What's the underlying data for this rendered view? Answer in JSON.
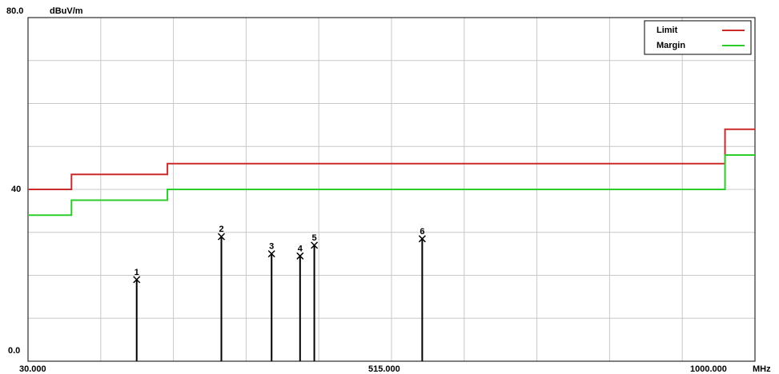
{
  "chart_data": {
    "type": "line",
    "y_unit": "dBuV/m",
    "x_unit": "MHz",
    "y_tick_labels": [
      "80.0",
      "40",
      "0.0"
    ],
    "x_tick_labels": [
      "30.000",
      "515.000",
      "1000.000"
    ],
    "ylim": [
      0,
      80
    ],
    "xlim": [
      30,
      1000
    ],
    "grid": true,
    "legend_position": "top-right",
    "series": [
      {
        "name": "Limit",
        "color": "#cc2a2a",
        "points": [
          [
            30,
            40
          ],
          [
            88,
            40
          ],
          [
            88,
            43.5
          ],
          [
            216,
            43.5
          ],
          [
            216,
            46
          ],
          [
            960,
            46
          ],
          [
            960,
            54
          ],
          [
            1000,
            54
          ]
        ]
      },
      {
        "name": "Margin",
        "color": "#2ccc2a",
        "points": [
          [
            30,
            34
          ],
          [
            88,
            34
          ],
          [
            88,
            37.5
          ],
          [
            216,
            37.5
          ],
          [
            216,
            40
          ],
          [
            960,
            40
          ],
          [
            960,
            48
          ],
          [
            1000,
            48
          ]
        ]
      }
    ],
    "markers": [
      {
        "label": "1",
        "x": 175,
        "y": 19
      },
      {
        "label": "2",
        "x": 288,
        "y": 29
      },
      {
        "label": "3",
        "x": 355,
        "y": 25
      },
      {
        "label": "4",
        "x": 393,
        "y": 24.5
      },
      {
        "label": "5",
        "x": 412,
        "y": 27
      },
      {
        "label": "6",
        "x": 556,
        "y": 28.5
      }
    ]
  }
}
